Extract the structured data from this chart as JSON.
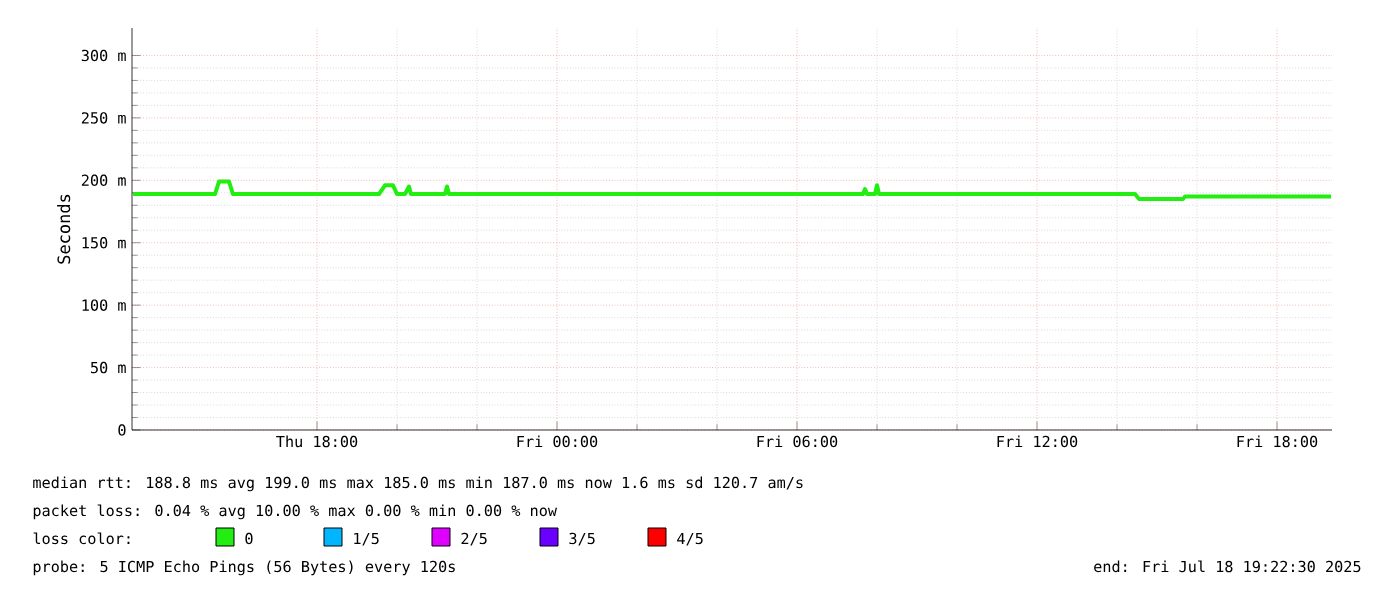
{
  "chart_data": {
    "type": "line",
    "ylabel": "Seconds",
    "x": [
      "2025-07-17T13:24",
      "2025-07-17T15:27",
      "2025-07-17T15:33",
      "2025-07-17T15:48",
      "2025-07-17T15:54",
      "2025-07-17T19:33",
      "2025-07-17T19:42",
      "2025-07-17T19:54",
      "2025-07-17T20:00",
      "2025-07-17T20:12",
      "2025-07-17T20:18",
      "2025-07-17T20:21",
      "2025-07-17T21:12",
      "2025-07-17T21:15",
      "2025-07-17T21:18",
      "2025-07-18T07:39",
      "2025-07-18T07:42",
      "2025-07-18T07:45",
      "2025-07-18T07:57",
      "2025-07-18T08:00",
      "2025-07-18T08:03",
      "2025-07-18T14:27",
      "2025-07-18T14:33",
      "2025-07-18T15:39",
      "2025-07-18T15:42",
      "2025-07-18T19:21"
    ],
    "series": [
      {
        "name": "0",
        "color": "#22ee11",
        "values": [
          189,
          189,
          199,
          199,
          189,
          189,
          196,
          196,
          189,
          189,
          195,
          189,
          189,
          195,
          189,
          189,
          193,
          189,
          189,
          196,
          189,
          189,
          185,
          185,
          187,
          187
        ]
      },
      {
        "name": "1/5",
        "color": "#00b7ff",
        "values": [
          null,
          null,
          null,
          null,
          null,
          null,
          null,
          null,
          null,
          null,
          null,
          null,
          null,
          null,
          null,
          null,
          null,
          null,
          null,
          null,
          null,
          null,
          null,
          null,
          null,
          null
        ]
      },
      {
        "name": "2/5",
        "color": "#e000ff",
        "values": [
          null,
          null,
          null,
          null,
          null,
          null,
          null,
          null,
          null,
          null,
          null,
          null,
          null,
          null,
          null,
          null,
          null,
          null,
          null,
          null,
          null,
          null,
          null,
          null,
          null,
          null
        ]
      },
      {
        "name": "3/5",
        "color": "#6a00ff",
        "values": [
          null,
          null,
          null,
          null,
          null,
          null,
          null,
          null,
          null,
          null,
          null,
          null,
          null,
          null,
          null,
          null,
          null,
          null,
          null,
          null,
          null,
          null,
          null,
          null,
          null,
          null
        ]
      },
      {
        "name": "4/5",
        "color": "#ff0000",
        "values": [
          null,
          null,
          null,
          null,
          null,
          null,
          null,
          null,
          null,
          null,
          null,
          null,
          null,
          null,
          null,
          null,
          null,
          null,
          null,
          null,
          null,
          null,
          null,
          null,
          null,
          null
        ]
      }
    ],
    "legend_title": "loss color:",
    "legend": "bottom",
    "xlim": [
      "2025-07-17T13:22:30",
      "2025-07-18T19:22:30"
    ],
    "xticks": [
      {
        "value": "2025-07-17T18:00",
        "label": "Thu 18:00"
      },
      {
        "value": "2025-07-18T00:00",
        "label": "Fri 00:00"
      },
      {
        "value": "2025-07-18T06:00",
        "label": "Fri 06:00"
      },
      {
        "value": "2025-07-18T12:00",
        "label": "Fri 12:00"
      },
      {
        "value": "2025-07-18T18:00",
        "label": "Fri 18:00"
      }
    ],
    "ylim": [
      0,
      322
    ],
    "yticks": [
      0,
      {
        "value": 50,
        "label": "50 m"
      },
      {
        "value": 100,
        "label": "100 m"
      },
      {
        "value": 150,
        "label": "150 m"
      },
      {
        "value": 200,
        "label": "200 m"
      },
      {
        "value": 250,
        "label": "250 m"
      },
      {
        "value": 300,
        "label": "300 m"
      }
    ],
    "grid": true,
    "marker": "none",
    "line_style": "solid",
    "annotations": [
      "median rtt:  188.8 ms avg  199.0 ms max  185.0 ms min  187.0 ms now  1.6 ms sd  120.7   am/s",
      "packet loss: 0.04 % avg  10.00 % max  0.00 % min  0.00 % now",
      "probe:       5 ICMP Echo Pings (56 Bytes) every 120s",
      "end: Fri Jul 18 19:22:30 2025"
    ]
  }
}
